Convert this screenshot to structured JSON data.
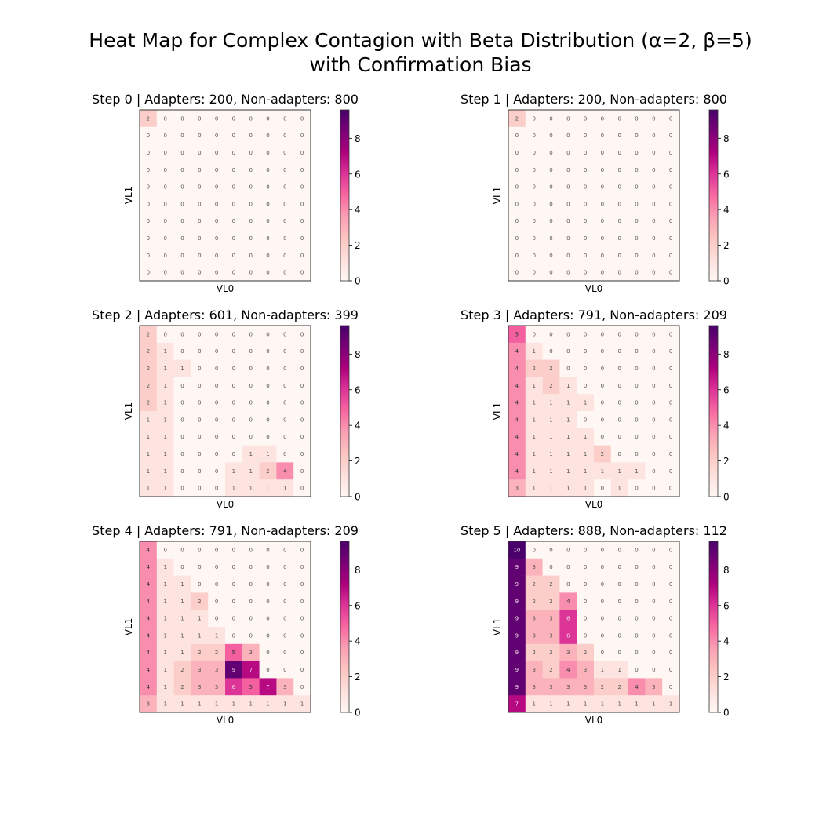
{
  "figure": {
    "title_line1": "Heat Map for Complex Contagion with Beta Distribution (α=2, β=5)",
    "title_line2": "with Confirmation Bias"
  },
  "chart_data": [
    {
      "type": "heatmap",
      "title": "Step 0 | Adapters: 200, Non-adapters: 800",
      "xlabel": "VL0",
      "ylabel": "VL1",
      "colormap": "RdPu",
      "colorbar": {
        "min": 0,
        "max": 9.6,
        "ticks": [
          0,
          2,
          4,
          6,
          8
        ]
      },
      "matrix": [
        [
          2,
          0,
          0,
          0,
          0,
          0,
          0,
          0,
          0,
          0
        ],
        [
          0,
          0,
          0,
          0,
          0,
          0,
          0,
          0,
          0,
          0
        ],
        [
          0,
          0,
          0,
          0,
          0,
          0,
          0,
          0,
          0,
          0
        ],
        [
          0,
          0,
          0,
          0,
          0,
          0,
          0,
          0,
          0,
          0
        ],
        [
          0,
          0,
          0,
          0,
          0,
          0,
          0,
          0,
          0,
          0
        ],
        [
          0,
          0,
          0,
          0,
          0,
          0,
          0,
          0,
          0,
          0
        ],
        [
          0,
          0,
          0,
          0,
          0,
          0,
          0,
          0,
          0,
          0
        ],
        [
          0,
          0,
          0,
          0,
          0,
          0,
          0,
          0,
          0,
          0
        ],
        [
          0,
          0,
          0,
          0,
          0,
          0,
          0,
          0,
          0,
          0
        ],
        [
          0,
          0,
          0,
          0,
          0,
          0,
          0,
          0,
          0,
          0
        ]
      ]
    },
    {
      "type": "heatmap",
      "title": "Step 1 | Adapters: 200, Non-adapters: 800",
      "xlabel": "VL0",
      "ylabel": "VL1",
      "colormap": "RdPu",
      "colorbar": {
        "min": 0,
        "max": 9.6,
        "ticks": [
          0,
          2,
          4,
          6,
          8
        ]
      },
      "matrix": [
        [
          2,
          0,
          0,
          0,
          0,
          0,
          0,
          0,
          0,
          0
        ],
        [
          0,
          0,
          0,
          0,
          0,
          0,
          0,
          0,
          0,
          0
        ],
        [
          0,
          0,
          0,
          0,
          0,
          0,
          0,
          0,
          0,
          0
        ],
        [
          0,
          0,
          0,
          0,
          0,
          0,
          0,
          0,
          0,
          0
        ],
        [
          0,
          0,
          0,
          0,
          0,
          0,
          0,
          0,
          0,
          0
        ],
        [
          0,
          0,
          0,
          0,
          0,
          0,
          0,
          0,
          0,
          0
        ],
        [
          0,
          0,
          0,
          0,
          0,
          0,
          0,
          0,
          0,
          0
        ],
        [
          0,
          0,
          0,
          0,
          0,
          0,
          0,
          0,
          0,
          0
        ],
        [
          0,
          0,
          0,
          0,
          0,
          0,
          0,
          0,
          0,
          0
        ],
        [
          0,
          0,
          0,
          0,
          0,
          0,
          0,
          0,
          0,
          0
        ]
      ]
    },
    {
      "type": "heatmap",
      "title": "Step 2 | Adapters: 601, Non-adapters: 399",
      "xlabel": "VL0",
      "ylabel": "VL1",
      "colormap": "RdPu",
      "colorbar": {
        "min": 0,
        "max": 9.6,
        "ticks": [
          0,
          2,
          4,
          6,
          8
        ]
      },
      "matrix": [
        [
          2,
          0,
          0,
          0,
          0,
          0,
          0,
          0,
          0,
          0
        ],
        [
          2,
          1,
          0,
          0,
          0,
          0,
          0,
          0,
          0,
          0
        ],
        [
          2,
          1,
          1,
          0,
          0,
          0,
          0,
          0,
          0,
          0
        ],
        [
          2,
          1,
          0,
          0,
          0,
          0,
          0,
          0,
          0,
          0
        ],
        [
          2,
          1,
          0,
          0,
          0,
          0,
          0,
          0,
          0,
          0
        ],
        [
          1,
          1,
          0,
          0,
          0,
          0,
          0,
          0,
          0,
          0
        ],
        [
          1,
          1,
          0,
          0,
          0,
          0,
          0,
          0,
          0,
          0
        ],
        [
          1,
          1,
          0,
          0,
          0,
          0,
          1,
          1,
          0,
          0
        ],
        [
          1,
          1,
          0,
          0,
          0,
          1,
          1,
          2,
          4,
          0
        ],
        [
          1,
          1,
          0,
          0,
          0,
          1,
          1,
          1,
          1,
          0
        ]
      ]
    },
    {
      "type": "heatmap",
      "title": "Step 3 | Adapters: 791, Non-adapters: 209",
      "xlabel": "VL0",
      "ylabel": "VL1",
      "colormap": "RdPu",
      "colorbar": {
        "min": 0,
        "max": 9.6,
        "ticks": [
          0,
          2,
          4,
          6,
          8
        ]
      },
      "matrix": [
        [
          5,
          0,
          0,
          0,
          0,
          0,
          0,
          0,
          0,
          0
        ],
        [
          4,
          1,
          0,
          0,
          0,
          0,
          0,
          0,
          0,
          0
        ],
        [
          4,
          2,
          2,
          0,
          0,
          0,
          0,
          0,
          0,
          0
        ],
        [
          4,
          1,
          2,
          1,
          0,
          0,
          0,
          0,
          0,
          0
        ],
        [
          4,
          1,
          1,
          1,
          1,
          0,
          0,
          0,
          0,
          0
        ],
        [
          4,
          1,
          1,
          1,
          0,
          0,
          0,
          0,
          0,
          0
        ],
        [
          4,
          1,
          1,
          1,
          1,
          0,
          0,
          0,
          0,
          0
        ],
        [
          4,
          1,
          1,
          1,
          1,
          2,
          0,
          0,
          0,
          0
        ],
        [
          4,
          1,
          1,
          1,
          1,
          1,
          1,
          1,
          0,
          0
        ],
        [
          3,
          1,
          1,
          1,
          1,
          0,
          1,
          0,
          0,
          0
        ]
      ]
    },
    {
      "type": "heatmap",
      "title": "Step 4 | Adapters: 791, Non-adapters: 209",
      "xlabel": "VL0",
      "ylabel": "VL1",
      "colormap": "RdPu",
      "colorbar": {
        "min": 0,
        "max": 9.6,
        "ticks": [
          0,
          2,
          4,
          6,
          8
        ]
      },
      "matrix": [
        [
          4,
          0,
          0,
          0,
          0,
          0,
          0,
          0,
          0,
          0
        ],
        [
          4,
          1,
          0,
          0,
          0,
          0,
          0,
          0,
          0,
          0
        ],
        [
          4,
          1,
          1,
          0,
          0,
          0,
          0,
          0,
          0,
          0
        ],
        [
          4,
          1,
          1,
          2,
          0,
          0,
          0,
          0,
          0,
          0
        ],
        [
          4,
          1,
          1,
          1,
          0,
          0,
          0,
          0,
          0,
          0
        ],
        [
          4,
          1,
          1,
          1,
          1,
          0,
          0,
          0,
          0,
          0
        ],
        [
          4,
          1,
          1,
          2,
          2,
          5,
          3,
          0,
          0,
          0
        ],
        [
          4,
          1,
          2,
          3,
          3,
          9,
          7,
          0,
          0,
          0
        ],
        [
          4,
          1,
          2,
          3,
          3,
          6,
          5,
          7,
          3,
          0
        ],
        [
          3,
          1,
          1,
          1,
          1,
          1,
          1,
          1,
          1,
          1
        ]
      ]
    },
    {
      "type": "heatmap",
      "title": "Step 5 | Adapters: 888, Non-adapters: 112",
      "xlabel": "VL0",
      "ylabel": "VL1",
      "colormap": "RdPu",
      "colorbar": {
        "min": 0,
        "max": 9.6,
        "ticks": [
          0,
          2,
          4,
          6,
          8
        ]
      },
      "matrix": [
        [
          10,
          0,
          0,
          0,
          0,
          0,
          0,
          0,
          0,
          0
        ],
        [
          9,
          3,
          0,
          0,
          0,
          0,
          0,
          0,
          0,
          0
        ],
        [
          9,
          2,
          2,
          0,
          0,
          0,
          0,
          0,
          0,
          0
        ],
        [
          9,
          2,
          2,
          4,
          0,
          0,
          0,
          0,
          0,
          0
        ],
        [
          9,
          3,
          3,
          6,
          0,
          0,
          0,
          0,
          0,
          0
        ],
        [
          9,
          3,
          3,
          6,
          0,
          0,
          0,
          0,
          0,
          0
        ],
        [
          9,
          2,
          2,
          3,
          2,
          0,
          0,
          0,
          0,
          0
        ],
        [
          9,
          3,
          2,
          4,
          3,
          1,
          1,
          0,
          0,
          0
        ],
        [
          9,
          3,
          3,
          3,
          3,
          2,
          2,
          4,
          3,
          0
        ],
        [
          7,
          1,
          1,
          1,
          1,
          1,
          1,
          1,
          1,
          1
        ]
      ]
    }
  ]
}
